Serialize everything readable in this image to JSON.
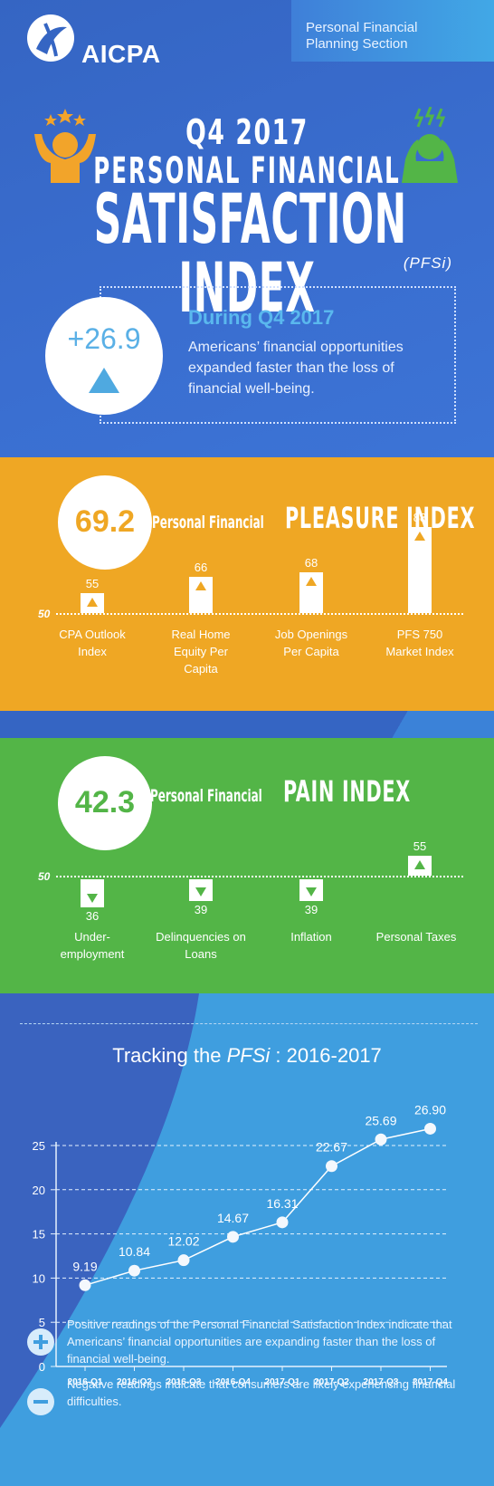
{
  "header": {
    "logo_text": "AICPA",
    "section_label": "Personal Financial Planning Section",
    "quarter": "Q4 2017",
    "subtitle": "PERSONAL FINANCIAL",
    "title": "SATISFACTION INDEX",
    "abbr": "(PFSi)"
  },
  "summary": {
    "value": "+26.9",
    "title": "During Q4 2017",
    "text": "Americans’ financial opportunities expanded faster than the loss of financial well-being."
  },
  "pleasure": {
    "value": "69.2",
    "title_small": "Personal Financial",
    "title_big": "PLEASURE INDEX",
    "baseline_label": "50",
    "accent": "#efa724",
    "items": [
      {
        "label": "CPA Outlook Index",
        "value": 55
      },
      {
        "label": "Real Home Equity Per Capita",
        "value": 66
      },
      {
        "label": "Job Openings Per Capita",
        "value": 68
      },
      {
        "label": "PFS 750 Market Index",
        "value": 88
      }
    ]
  },
  "pain": {
    "value": "42.3",
    "title_small": "Personal Financial",
    "title_big": "PAIN INDEX",
    "baseline_label": "50",
    "accent": "#53b547",
    "items": [
      {
        "label": "Under-employment",
        "value": 36
      },
      {
        "label": "Delinquencies on Loans",
        "value": 39
      },
      {
        "label": "Inflation",
        "value": 39
      },
      {
        "label": "Personal Taxes",
        "value": 55
      }
    ]
  },
  "tracking": {
    "title_prefix": "Tracking the ",
    "title_em": "PFSi",
    "title_suffix": " : 2016-2017"
  },
  "chart_data": {
    "type": "line",
    "x": [
      "2016-Q1",
      "2016-Q2",
      "2016-Q3",
      "2016-Q4",
      "2017-Q1",
      "2017-Q2",
      "2017-Q3",
      "2017-Q4"
    ],
    "values": [
      9.19,
      10.84,
      12.02,
      14.67,
      16.31,
      22.67,
      25.69,
      26.9
    ],
    "data_labels": [
      "9.19",
      "10.84",
      "12.02",
      "14.67",
      "16.31",
      "22.67",
      "25.69",
      "26.90"
    ],
    "yticks": [
      0,
      5,
      10,
      15,
      20,
      25
    ],
    "ylim": [
      0,
      25
    ],
    "grid": true
  },
  "legend": {
    "positive": "Positive readings of the Personal Financial Satisfaction Index indicate that Americans’ financial opportunities are expanding faster than the loss of financial well-being.",
    "negative": "Negative readings indicate that consumers are likely experiencing financial difficulties."
  }
}
